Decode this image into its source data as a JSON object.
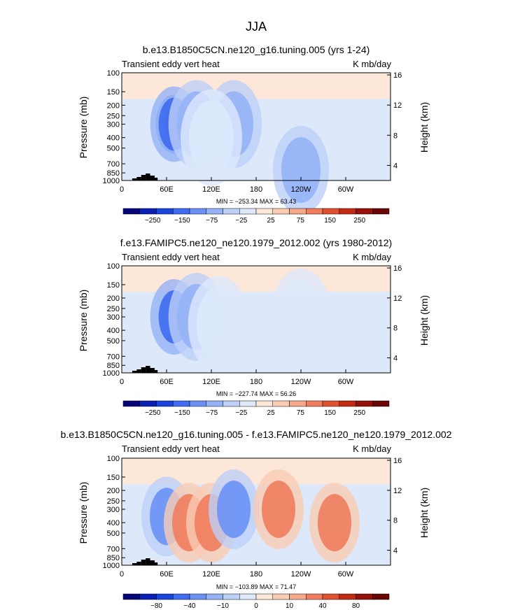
{
  "figure_title": "JJA",
  "chart_data": [
    {
      "type": "heatmap",
      "title": "b.e13.B1850C5CN.ne120_g16.tuning.005 (yrs 1-24)",
      "left_label": "Transient eddy vert heat",
      "right_label": "K mb/day",
      "ylabel": "Pressure (mb)",
      "y2label": "Height (km)",
      "xticks": [
        "0",
        "60E",
        "120E",
        "180",
        "120W",
        "60W"
      ],
      "yticks": [
        "100",
        "150",
        "200",
        "250",
        "300",
        "400",
        "500",
        "700",
        "850",
        "1000"
      ],
      "y2ticks": [
        "16",
        "12",
        "8",
        "4"
      ],
      "stats": "MIN = −253.34   MAX =   63.43",
      "min": -253.34,
      "max": 63.43,
      "colorbar_labels": [
        "−250",
        "−150",
        "−75",
        "−25",
        "25",
        "75",
        "150",
        "250"
      ],
      "features": [
        {
          "lon": 70,
          "p": 300,
          "level": -250
        },
        {
          "lon": 70,
          "p": 300,
          "level": -150
        },
        {
          "lon": 100,
          "p": 300,
          "level": -75
        },
        {
          "lon": 150,
          "p": 300,
          "level": -75
        },
        {
          "lon": 120,
          "p": 400,
          "level": -25
        },
        {
          "lon": 240,
          "p": 800,
          "level": -75
        }
      ]
    },
    {
      "type": "heatmap",
      "title": "f.e13.FAMIPC5.ne120_ne120.1979_2012.002 (yrs 1980-2012)",
      "left_label": "Transient eddy vert heat",
      "right_label": "K mb/day",
      "ylabel": "Pressure (mb)",
      "y2label": "Height (km)",
      "xticks": [
        "0",
        "60E",
        "120E",
        "180",
        "120W",
        "60W"
      ],
      "yticks": [
        "100",
        "150",
        "200",
        "250",
        "300",
        "400",
        "500",
        "700",
        "850",
        "1000"
      ],
      "y2ticks": [
        "16",
        "12",
        "8",
        "4"
      ],
      "stats": "MIN = −227.74   MAX =   56.26",
      "min": -227.74,
      "max": 56.26,
      "colorbar_labels": [
        "−250",
        "−150",
        "−75",
        "−25",
        "25",
        "75",
        "150",
        "250"
      ],
      "features": [
        {
          "lon": 70,
          "p": 300,
          "level": -150
        },
        {
          "lon": 100,
          "p": 300,
          "level": -75
        },
        {
          "lon": 130,
          "p": 350,
          "level": -25
        },
        {
          "lon": 240,
          "p": 300,
          "level": -25
        }
      ]
    },
    {
      "type": "heatmap",
      "title": "b.e13.B1850C5CN.ne120_g16.tuning.005 - f.e13.FAMIPC5.ne120_ne120.1979_2012.002",
      "left_label": "Transient eddy vert heat",
      "right_label": "K mb/day",
      "ylabel": "Pressure (mb)",
      "y2label": "Height (km)",
      "xticks": [
        "0",
        "60E",
        "120E",
        "180",
        "120W",
        "60W"
      ],
      "yticks": [
        "100",
        "150",
        "200",
        "250",
        "300",
        "400",
        "500",
        "700",
        "850",
        "1000"
      ],
      "y2ticks": [
        "16",
        "12",
        "8",
        "4"
      ],
      "stats": "MIN = −103.89   MAX =   71.47",
      "min": -103.89,
      "max": 71.47,
      "colorbar_labels": [
        "−80",
        "−40",
        "−10",
        "0",
        "10",
        "40",
        "80"
      ],
      "features": [
        {
          "lon": 60,
          "p": 350,
          "level": -40
        },
        {
          "lon": 90,
          "p": 400,
          "level": 40
        },
        {
          "lon": 120,
          "p": 400,
          "level": 40
        },
        {
          "lon": 150,
          "p": 300,
          "level": -40
        },
        {
          "lon": 210,
          "p": 300,
          "level": 40
        },
        {
          "lon": 285,
          "p": 400,
          "level": 40
        }
      ]
    }
  ],
  "colormap": [
    "#05057a",
    "#0a1fb4",
    "#1b44dd",
    "#3f6cf0",
    "#6b91f4",
    "#95b2f6",
    "#bdd0f8",
    "#dde9fb",
    "#fde7d8",
    "#f9ccb4",
    "#f5a98a",
    "#ef7d5e",
    "#e2512f",
    "#c22a13",
    "#95110a",
    "#6b0606"
  ],
  "background_neutral": "#dde9fb",
  "background_upper": "#fde7d8"
}
